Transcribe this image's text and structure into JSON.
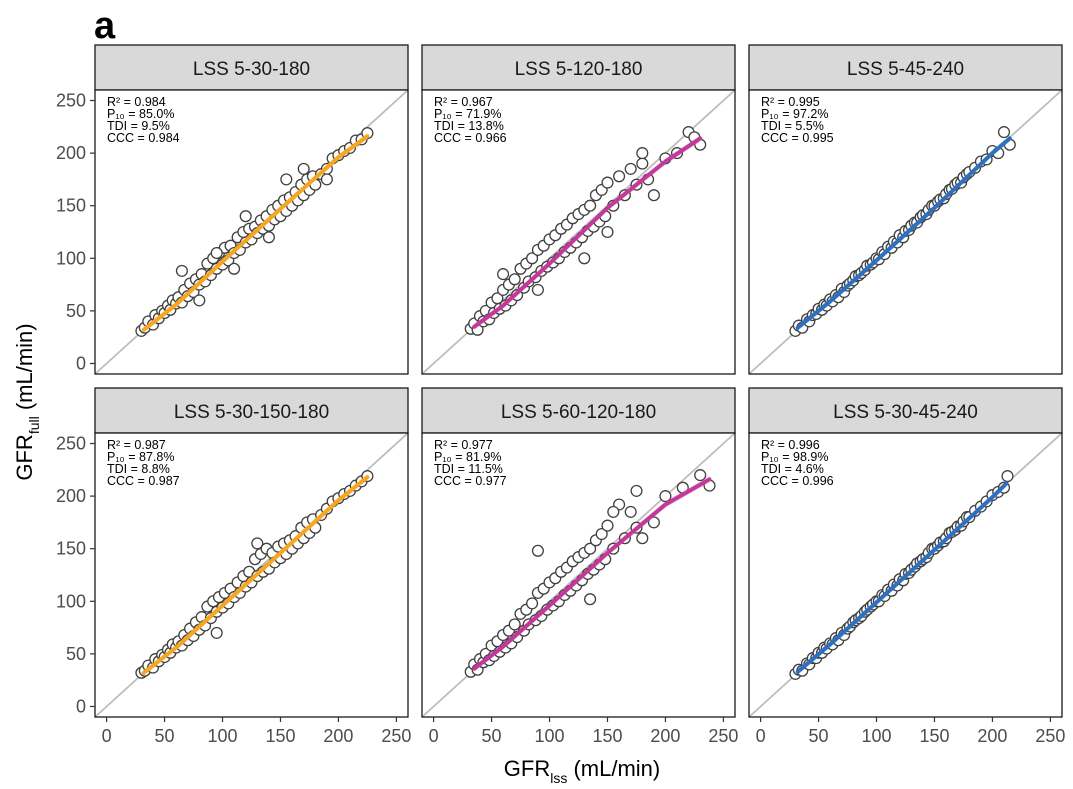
{
  "figure": {
    "panel_label": "a",
    "xlabel_main": "GFR",
    "xlabel_sub": "lss",
    "xlabel_unit": " (mL/min)",
    "ylabel_main": "GFR",
    "ylabel_sub": "full",
    "ylabel_unit": " (mL/min)"
  },
  "chart_data": {
    "type": "scatter",
    "layout": "facet grid 2x3",
    "xlim": [
      -10,
      260
    ],
    "ylim": [
      -10,
      260
    ],
    "x_ticks": [
      0,
      50,
      100,
      150,
      200,
      250
    ],
    "y_ticks": [
      0,
      50,
      100,
      150,
      200,
      250
    ],
    "x_tick_labels": [
      "0",
      "50",
      "100",
      "150",
      "200",
      "250"
    ],
    "y_tick_labels": [
      "0",
      "50",
      "100",
      "150",
      "200",
      "250"
    ],
    "identity_line": true,
    "grid": false,
    "facets": [
      {
        "title": "LSS 5-30-180",
        "fit_color": "#f5a623",
        "stats": [
          "R² = 0.984",
          "P₁₀ = 85.0%",
          "TDI = 9.5%",
          "CCC = 0.984"
        ],
        "fit": {
          "x": [
            32,
            60,
            100,
            150,
            200,
            225
          ],
          "y": [
            32,
            56,
            97,
            147,
            196,
            216
          ]
        },
        "points": {
          "x": [
            30,
            33,
            36,
            40,
            42,
            45,
            48,
            50,
            53,
            55,
            57,
            60,
            62,
            65,
            67,
            70,
            72,
            75,
            77,
            80,
            82,
            85,
            87,
            90,
            92,
            95,
            97,
            100,
            102,
            105,
            107,
            110,
            113,
            115,
            118,
            120,
            123,
            125,
            128,
            130,
            133,
            135,
            138,
            140,
            143,
            145,
            148,
            150,
            153,
            155,
            158,
            160,
            163,
            165,
            168,
            170,
            173,
            175,
            178,
            180,
            185,
            190,
            195,
            200,
            205,
            210,
            215,
            220,
            225,
            120,
            110,
            95,
            140,
            155,
            170,
            80,
            65,
            190
          ],
          "y": [
            31,
            34,
            40,
            37,
            46,
            43,
            50,
            48,
            55,
            51,
            60,
            57,
            63,
            58,
            70,
            64,
            76,
            68,
            80,
            75,
            85,
            78,
            95,
            84,
            100,
            90,
            105,
            94,
            110,
            98,
            112,
            105,
            120,
            108,
            125,
            115,
            128,
            118,
            130,
            124,
            136,
            128,
            140,
            131,
            146,
            137,
            150,
            140,
            155,
            145,
            158,
            150,
            163,
            155,
            170,
            160,
            175,
            165,
            178,
            170,
            180,
            185,
            195,
            198,
            202,
            205,
            212,
            213,
            219,
            140,
            90,
            105,
            120,
            175,
            185,
            60,
            88,
            175
          ]
        }
      },
      {
        "title": "LSS 5-120-180",
        "fit_color": "#c2399a",
        "stats": [
          "R² = 0.967",
          "P₁₀ = 71.9%",
          "TDI = 13.8%",
          "CCC = 0.966"
        ],
        "fit": {
          "x": [
            35,
            60,
            100,
            150,
            200,
            230
          ],
          "y": [
            35,
            55,
            95,
            148,
            192,
            214
          ]
        },
        "points": {
          "x": [
            32,
            35,
            38,
            40,
            43,
            45,
            48,
            50,
            52,
            55,
            57,
            60,
            62,
            65,
            67,
            70,
            72,
            75,
            78,
            80,
            82,
            85,
            88,
            90,
            93,
            95,
            98,
            100,
            103,
            105,
            108,
            110,
            113,
            115,
            118,
            120,
            123,
            125,
            128,
            130,
            133,
            135,
            138,
            140,
            143,
            145,
            148,
            150,
            155,
            160,
            165,
            170,
            175,
            180,
            185,
            190,
            200,
            210,
            220,
            230,
            225,
            60,
            90,
            130,
            150,
            180
          ],
          "y": [
            33,
            38,
            32,
            45,
            40,
            50,
            42,
            58,
            48,
            62,
            52,
            70,
            55,
            75,
            60,
            80,
            65,
            90,
            72,
            95,
            78,
            100,
            82,
            108,
            88,
            112,
            92,
            118,
            96,
            122,
            100,
            128,
            106,
            132,
            110,
            138,
            115,
            142,
            120,
            146,
            126,
            150,
            130,
            160,
            135,
            165,
            140,
            172,
            150,
            178,
            160,
            185,
            170,
            190,
            175,
            160,
            195,
            200,
            220,
            208,
            215,
            85,
            70,
            100,
            125,
            200
          ]
        }
      },
      {
        "title": "LSS 5-45-240",
        "fit_color": "#2f6fbf",
        "stats": [
          "R² = 0.995",
          "P₁₀ = 97.2%",
          "TDI = 5.5%",
          "CCC = 0.995"
        ],
        "fit": {
          "x": [
            32,
            60,
            100,
            150,
            200,
            215
          ],
          "y": [
            34,
            59,
            98,
            148,
            200,
            214
          ]
        },
        "points": {
          "x": [
            30,
            33,
            36,
            40,
            42,
            45,
            48,
            50,
            53,
            55,
            57,
            60,
            62,
            65,
            67,
            70,
            72,
            75,
            77,
            80,
            82,
            85,
            87,
            90,
            92,
            95,
            97,
            100,
            102,
            105,
            107,
            110,
            113,
            115,
            118,
            120,
            123,
            125,
            128,
            130,
            133,
            135,
            138,
            140,
            143,
            145,
            148,
            150,
            153,
            155,
            158,
            160,
            163,
            165,
            168,
            170,
            173,
            175,
            178,
            180,
            185,
            190,
            195,
            200,
            205,
            210,
            215
          ],
          "y": [
            31,
            36,
            34,
            42,
            40,
            46,
            47,
            52,
            51,
            56,
            55,
            61,
            59,
            65,
            63,
            71,
            68,
            74,
            76,
            79,
            83,
            84,
            86,
            89,
            93,
            94,
            96,
            100,
            99,
            106,
            104,
            111,
            110,
            116,
            115,
            122,
            120,
            126,
            127,
            131,
            134,
            134,
            139,
            141,
            142,
            146,
            150,
            150,
            154,
            156,
            157,
            161,
            165,
            166,
            170,
            172,
            172,
            177,
            180,
            182,
            186,
            192,
            194,
            202,
            200,
            220,
            208
          ]
        }
      },
      {
        "title": "LSS 5-30-150-180",
        "fit_color": "#f5a623",
        "stats": [
          "R² = 0.987",
          "P₁₀ = 87.8%",
          "TDI = 8.8%",
          "CCC = 0.987"
        ],
        "fit": {
          "x": [
            32,
            60,
            100,
            150,
            200,
            225
          ],
          "y": [
            32,
            56,
            96,
            146,
            196,
            218
          ]
        },
        "points": {
          "x": [
            30,
            33,
            36,
            40,
            42,
            45,
            48,
            50,
            53,
            55,
            57,
            60,
            62,
            65,
            67,
            70,
            72,
            75,
            77,
            80,
            82,
            85,
            87,
            90,
            92,
            95,
            97,
            100,
            102,
            105,
            107,
            110,
            113,
            115,
            118,
            120,
            123,
            125,
            128,
            130,
            133,
            135,
            138,
            140,
            143,
            145,
            148,
            150,
            153,
            155,
            158,
            160,
            163,
            165,
            168,
            170,
            173,
            175,
            178,
            180,
            185,
            190,
            195,
            200,
            205,
            210,
            215,
            220,
            225,
            95,
            130
          ],
          "y": [
            32,
            34,
            39,
            37,
            45,
            43,
            49,
            47,
            54,
            51,
            59,
            56,
            62,
            58,
            68,
            63,
            74,
            67,
            80,
            73,
            85,
            77,
            95,
            84,
            100,
            90,
            104,
            94,
            108,
            98,
            112,
            104,
            118,
            108,
            124,
            114,
            128,
            118,
            140,
            124,
            145,
            128,
            150,
            131,
            146,
            137,
            152,
            141,
            155,
            145,
            158,
            150,
            162,
            155,
            170,
            160,
            175,
            165,
            178,
            170,
            182,
            188,
            195,
            198,
            202,
            205,
            210,
            214,
            219,
            70,
            155
          ]
        }
      },
      {
        "title": "LSS 5-60-120-180",
        "fit_color": "#c2399a",
        "stats": [
          "R² = 0.977",
          "P₁₀ = 81.9%",
          "TDI = 11.5%",
          "CCC = 0.977"
        ],
        "fit": {
          "x": [
            35,
            60,
            100,
            150,
            200,
            238
          ],
          "y": [
            36,
            57,
            96,
            146,
            192,
            216
          ]
        },
        "points": {
          "x": [
            32,
            35,
            38,
            40,
            43,
            45,
            48,
            50,
            52,
            55,
            57,
            60,
            62,
            65,
            67,
            70,
            72,
            75,
            78,
            80,
            82,
            85,
            88,
            90,
            93,
            95,
            98,
            100,
            103,
            105,
            108,
            110,
            113,
            115,
            118,
            120,
            123,
            125,
            128,
            130,
            133,
            135,
            138,
            140,
            143,
            145,
            148,
            150,
            155,
            160,
            165,
            170,
            175,
            180,
            190,
            200,
            215,
            230,
            238,
            90,
            135,
            175,
            155
          ],
          "y": [
            33,
            40,
            35,
            45,
            42,
            50,
            44,
            58,
            48,
            62,
            52,
            68,
            56,
            72,
            60,
            78,
            66,
            88,
            72,
            92,
            78,
            98,
            82,
            108,
            86,
            112,
            92,
            118,
            96,
            122,
            100,
            128,
            106,
            132,
            110,
            138,
            115,
            142,
            120,
            146,
            126,
            150,
            130,
            158,
            135,
            164,
            140,
            172,
            150,
            192,
            160,
            185,
            170,
            160,
            175,
            200,
            208,
            220,
            210,
            148,
            102,
            205,
            185
          ]
        }
      },
      {
        "title": "LSS 5-30-45-240",
        "fit_color": "#2f6fbf",
        "stats": [
          "R² = 0.996",
          "P₁₀ = 98.9%",
          "TDI = 4.6%",
          "CCC = 0.996"
        ],
        "fit": {
          "x": [
            32,
            60,
            100,
            150,
            200,
            212
          ],
          "y": [
            33,
            59,
            99,
            149,
            199,
            212
          ]
        },
        "points": {
          "x": [
            30,
            33,
            36,
            40,
            42,
            45,
            48,
            50,
            53,
            55,
            57,
            60,
            62,
            65,
            67,
            70,
            72,
            75,
            77,
            80,
            82,
            85,
            87,
            90,
            92,
            95,
            97,
            100,
            102,
            105,
            107,
            110,
            113,
            115,
            118,
            120,
            123,
            125,
            128,
            130,
            133,
            135,
            138,
            140,
            143,
            145,
            148,
            150,
            153,
            155,
            158,
            160,
            163,
            165,
            168,
            170,
            173,
            175,
            178,
            180,
            185,
            190,
            195,
            200,
            205,
            210,
            213
          ],
          "y": [
            31,
            35,
            34,
            41,
            40,
            46,
            46,
            51,
            51,
            56,
            55,
            60,
            59,
            65,
            63,
            70,
            68,
            74,
            76,
            80,
            82,
            84,
            86,
            90,
            92,
            95,
            97,
            100,
            100,
            106,
            105,
            111,
            110,
            116,
            115,
            121,
            120,
            126,
            127,
            130,
            133,
            136,
            138,
            140,
            142,
            146,
            150,
            150,
            153,
            156,
            157,
            160,
            165,
            166,
            168,
            171,
            172,
            176,
            180,
            180,
            186,
            190,
            195,
            201,
            204,
            208,
            219
          ]
        }
      }
    ]
  }
}
